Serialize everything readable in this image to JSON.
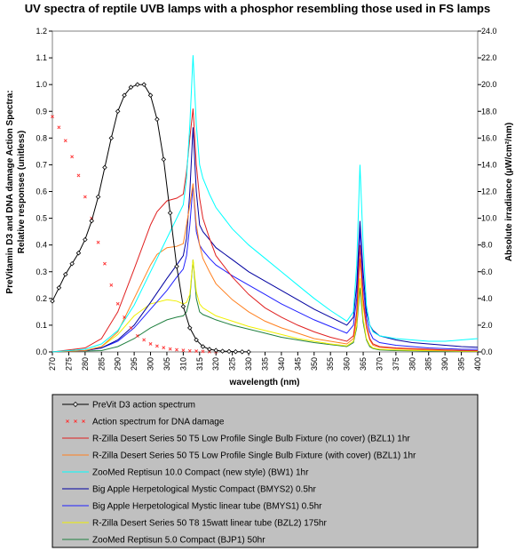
{
  "chart_data": {
    "type": "line",
    "title": "UV spectra of reptile UVB lamps with a phosphor resembling those used in FS lamps",
    "xlabel": "wavelength (nm)",
    "ylabel_left_line1": "PreVitamin D3 and DNA damage Action Spectra:",
    "ylabel_left_line2": "Relative responses (unitless)",
    "ylabel_right": "Absolute irradiance (µW/cm²/nm)",
    "xlim": [
      270,
      400
    ],
    "ylim_left": [
      0,
      1.2
    ],
    "ylim_right": [
      0,
      24
    ],
    "x_ticks": [
      "270",
      "275",
      "280",
      "285",
      "290",
      "295",
      "300",
      "305",
      "310",
      "315",
      "320",
      "325",
      "330",
      "335",
      "340",
      "345",
      "350",
      "355",
      "360",
      "365",
      "370",
      "375",
      "380",
      "385",
      "390",
      "395",
      "400"
    ],
    "y_left_ticks": [
      "0.0",
      "0.1",
      "0.2",
      "0.3",
      "0.4",
      "0.5",
      "0.6",
      "0.7",
      "0.8",
      "0.9",
      "1.0",
      "1.1",
      "1.2"
    ],
    "y_right_ticks": [
      "0.0",
      "2.0",
      "4.0",
      "6.0",
      "8.0",
      "10.0",
      "12.0",
      "14.0",
      "16.0",
      "18.0",
      "20.0",
      "22.0",
      "24.0"
    ],
    "grid": false,
    "plot_background": "#ffffff",
    "legend_background": "#c0c0c0",
    "legend_position": "bottom",
    "series": [
      {
        "name": "PreVit D3 action spectrum",
        "axis": "left",
        "color": "#000000",
        "marker": "diamond",
        "x": [
          270,
          272,
          274,
          276,
          278,
          280,
          282,
          284,
          286,
          288,
          290,
          292,
          294,
          296,
          298,
          300,
          302,
          304,
          306,
          308,
          310,
          312,
          314,
          316,
          318,
          320,
          322,
          324,
          326,
          328,
          330
        ],
        "y": [
          0.19,
          0.24,
          0.29,
          0.33,
          0.37,
          0.42,
          0.49,
          0.58,
          0.69,
          0.8,
          0.9,
          0.96,
          0.99,
          1.0,
          1.0,
          0.96,
          0.87,
          0.72,
          0.52,
          0.32,
          0.17,
          0.09,
          0.045,
          0.02,
          0.01,
          0.006,
          0.003,
          0.002,
          0.001,
          0.0005,
          0.0002
        ]
      },
      {
        "name": "Action spectrum for DNA damage",
        "axis": "left",
        "color": "#ff3030",
        "marker": "x",
        "x": [
          270,
          272,
          274,
          276,
          278,
          280,
          282,
          284,
          286,
          288,
          290,
          292,
          294,
          296,
          298,
          300,
          302,
          304,
          306,
          308,
          310,
          312,
          314,
          316,
          318,
          320
        ],
        "y": [
          0.88,
          0.84,
          0.79,
          0.73,
          0.66,
          0.58,
          0.5,
          0.41,
          0.33,
          0.25,
          0.18,
          0.13,
          0.09,
          0.06,
          0.045,
          0.03,
          0.022,
          0.016,
          0.011,
          0.008,
          0.006,
          0.004,
          0.003,
          0.002,
          0.001,
          0.0005
        ]
      },
      {
        "name": "R-Zilla Desert Series 50 T5 Low Profile Single Bulb Fixture (no cover) (BZL1) 1hr",
        "axis": "right",
        "color": "#e02020",
        "x": [
          270,
          280,
          285,
          290,
          295,
          300,
          302,
          305,
          308,
          310,
          311,
          312,
          313,
          314,
          315,
          316,
          318,
          320,
          325,
          330,
          335,
          340,
          345,
          350,
          355,
          360,
          362,
          363,
          364,
          365,
          366,
          367,
          368,
          370,
          375,
          380,
          385,
          390,
          395,
          400
        ],
        "y": [
          0,
          0.3,
          1.0,
          3.0,
          6.2,
          9.5,
          10.5,
          11.3,
          11.5,
          11.8,
          13.5,
          16.0,
          18.2,
          14.0,
          11.5,
          10.0,
          8.5,
          7.2,
          5.6,
          4.3,
          3.3,
          2.6,
          2.0,
          1.5,
          1.1,
          0.8,
          1.2,
          3.0,
          8.0,
          4.0,
          2.0,
          1.0,
          0.6,
          0.4,
          0.3,
          0.25,
          0.2,
          0.15,
          0.12,
          0.1
        ]
      },
      {
        "name": "R-Zilla Desert Series 50 T5 Low Profile Single Bulb Fixture (with cover) (BZL1) 1hr",
        "axis": "right",
        "color": "#ff8020",
        "x": [
          270,
          280,
          285,
          290,
          295,
          300,
          302,
          305,
          308,
          310,
          311,
          312,
          313,
          314,
          315,
          316,
          318,
          320,
          325,
          330,
          335,
          340,
          345,
          350,
          355,
          360,
          362,
          363,
          364,
          365,
          366,
          367,
          368,
          370,
          375,
          380,
          385,
          390,
          395,
          400
        ],
        "y": [
          0,
          0.1,
          0.4,
          1.5,
          4.0,
          6.5,
          7.3,
          7.8,
          7.9,
          8.1,
          9.5,
          11.0,
          12.6,
          9.5,
          8.0,
          7.0,
          6.0,
          5.1,
          3.9,
          3.0,
          2.3,
          1.8,
          1.4,
          1.0,
          0.8,
          0.6,
          1.0,
          2.5,
          7.0,
          3.5,
          1.8,
          0.9,
          0.5,
          0.35,
          0.25,
          0.2,
          0.15,
          0.12,
          0.1,
          0.08
        ]
      },
      {
        "name": "ZooMed Reptisun 10.0 Compact (new style) (BW1) 1hr",
        "axis": "right",
        "color": "#00ffff",
        "x": [
          270,
          280,
          285,
          290,
          295,
          300,
          305,
          308,
          310,
          311,
          312,
          313,
          314,
          315,
          316,
          318,
          320,
          325,
          330,
          335,
          340,
          345,
          350,
          355,
          360,
          362,
          363,
          364,
          365,
          366,
          367,
          368,
          370,
          375,
          380,
          385,
          390,
          395,
          400
        ],
        "y": [
          0,
          0.2,
          0.6,
          1.6,
          3.5,
          6.0,
          8.5,
          10.0,
          11.0,
          13.0,
          17.0,
          22.2,
          17.0,
          14.0,
          13.0,
          11.8,
          10.8,
          9.2,
          8.0,
          7.0,
          6.0,
          5.0,
          4.0,
          3.1,
          2.3,
          3.0,
          6.5,
          14.0,
          8.0,
          3.5,
          2.0,
          1.5,
          1.2,
          1.0,
          0.9,
          0.8,
          0.8,
          0.9,
          1.0
        ]
      },
      {
        "name": "Big Apple Herpetological Mystic Compact (BMYS2) 0.5hr",
        "axis": "right",
        "color": "#0000a0",
        "x": [
          270,
          280,
          285,
          290,
          295,
          300,
          305,
          308,
          310,
          311,
          312,
          313,
          314,
          315,
          316,
          318,
          320,
          325,
          330,
          335,
          340,
          345,
          350,
          355,
          360,
          362,
          363,
          364,
          365,
          366,
          367,
          368,
          370,
          375,
          380,
          385,
          390,
          395,
          400
        ],
        "y": [
          0,
          0.1,
          0.3,
          0.9,
          2.0,
          3.7,
          5.5,
          6.5,
          7.2,
          8.5,
          12.0,
          16.8,
          12.0,
          9.5,
          9.0,
          8.4,
          7.8,
          6.9,
          6.0,
          5.3,
          4.6,
          3.9,
          3.2,
          2.6,
          2.0,
          2.6,
          5.0,
          9.8,
          6.0,
          3.0,
          2.0,
          1.6,
          1.2,
          0.9,
          0.7,
          0.6,
          0.5,
          0.4,
          0.35
        ]
      },
      {
        "name": "Big Apple Herpetological Mystic linear tube (BMYS1) 0.5hr",
        "axis": "right",
        "color": "#2020ff",
        "x": [
          270,
          280,
          285,
          290,
          295,
          300,
          305,
          308,
          310,
          311,
          312,
          313,
          314,
          315,
          316,
          318,
          320,
          325,
          330,
          335,
          340,
          345,
          350,
          355,
          360,
          362,
          363,
          364,
          365,
          366,
          367,
          368,
          370,
          375,
          380,
          385,
          390,
          395,
          400
        ],
        "y": [
          0,
          0.1,
          0.3,
          0.8,
          1.8,
          3.2,
          4.6,
          5.6,
          6.2,
          7.2,
          9.5,
          12.5,
          9.0,
          8.0,
          7.6,
          7.0,
          6.5,
          5.7,
          5.0,
          4.3,
          3.6,
          3.0,
          2.4,
          1.9,
          1.4,
          2.0,
          4.0,
          9.2,
          5.0,
          2.5,
          1.5,
          1.0,
          0.7,
          0.5,
          0.4,
          0.3,
          0.25,
          0.2,
          0.2
        ]
      },
      {
        "name": "R-Zilla Desert Series 50 T8 15watt linear tube (BZL2) 175hr",
        "axis": "right",
        "color": "#f0f000",
        "x": [
          270,
          280,
          285,
          290,
          295,
          300,
          305,
          308,
          310,
          311,
          312,
          313,
          314,
          315,
          316,
          318,
          320,
          325,
          330,
          335,
          340,
          345,
          350,
          355,
          360,
          362,
          363,
          364,
          365,
          366,
          367,
          368,
          370,
          375,
          380,
          385,
          390,
          395,
          400
        ],
        "y": [
          0,
          0.1,
          0.4,
          1.3,
          2.7,
          3.6,
          3.9,
          3.8,
          3.6,
          3.7,
          4.3,
          6.9,
          4.5,
          3.6,
          3.3,
          3.0,
          2.7,
          2.3,
          1.9,
          1.6,
          1.3,
          1.0,
          0.8,
          0.6,
          0.45,
          0.8,
          2.0,
          5.5,
          2.5,
          1.0,
          0.5,
          0.3,
          0.2,
          0.15,
          0.12,
          0.1,
          0.08,
          0.06,
          0.05
        ]
      },
      {
        "name": "ZooMed Reptisun 5.0 Compact (BJP1) 50hr",
        "axis": "right",
        "color": "#208040",
        "x": [
          270,
          285,
          290,
          295,
          300,
          305,
          308,
          310,
          311,
          312,
          313,
          314,
          315,
          316,
          318,
          320,
          325,
          330,
          335,
          340,
          345,
          350,
          355,
          360,
          362,
          363,
          364,
          365,
          366,
          367,
          368,
          370,
          375,
          380,
          385,
          390,
          395,
          400
        ],
        "y": [
          0,
          0.1,
          0.4,
          1.0,
          1.8,
          2.4,
          2.6,
          2.7,
          3.0,
          4.0,
          6.9,
          4.0,
          3.0,
          2.8,
          2.6,
          2.4,
          2.0,
          1.7,
          1.4,
          1.1,
          0.9,
          0.7,
          0.55,
          0.4,
          0.7,
          1.8,
          4.8,
          2.2,
          0.9,
          0.4,
          0.25,
          0.15,
          0.1,
          0.08,
          0.06,
          0.05,
          0.04,
          0.03
        ]
      }
    ]
  }
}
